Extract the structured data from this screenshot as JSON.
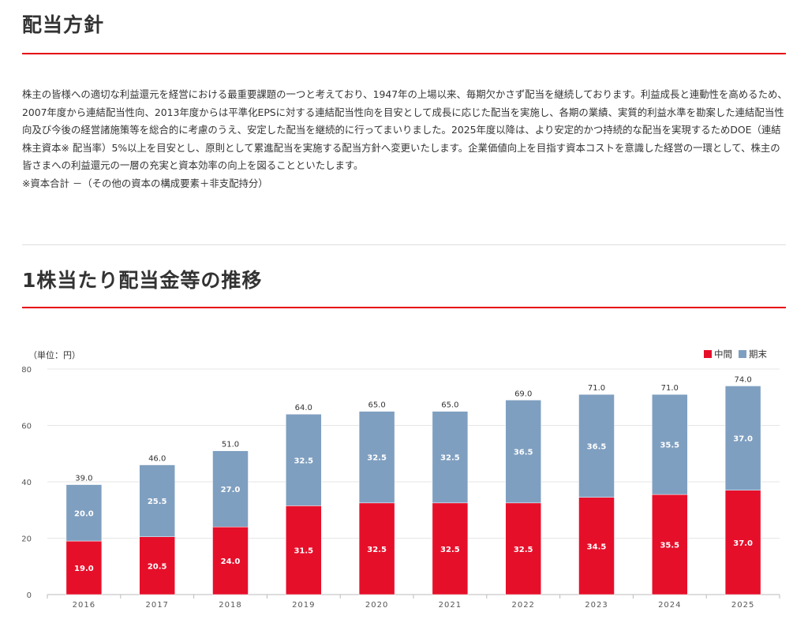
{
  "sections": {
    "policy": {
      "title": "配当方針",
      "body": [
        "株主の皆様への適切な利益還元を経営における最重要課題の一つと考えており、1947年の上場以来、毎期欠かさず配当を継続しております。利益成長と連動性を高めるため、2007年度から連結配当性向、2013年度からは平準化EPSに対する連結配当性向を目安として成長に応じた配当を実施し、各期の業績、実質的利益水準を勘案した連結配当性向及び今後の経営諸施策等を総合的に考慮のうえ、安定した配当を継続的に行ってまいりました。2025年度以降は、より安定的かつ持続的な配当を実現するためDOE（連結株主資本※ 配当率）5%以上を目安とし、原則として累進配当を実施する配当方針へ変更いたします。企業価値向上を目指す資本コストを意識した経営の一環として、株主の皆さまへの利益還元の一層の充実と資本効率の向上を図ることといたします。",
        "※資本合計 －（その他の資本の構成要素＋非支配持分）"
      ]
    },
    "trend": {
      "title": "1株当たり配当金等の推移"
    }
  },
  "chart_data": {
    "type": "bar",
    "stacked": true,
    "unit_label": "（単位：円）",
    "categories": [
      "2016",
      "2017",
      "2018",
      "2019",
      "2020",
      "2021",
      "2022",
      "2023",
      "2024",
      "2025"
    ],
    "series": [
      {
        "name": "中間",
        "color": "#e60f2a",
        "values": [
          19.0,
          20.5,
          24.0,
          31.5,
          32.5,
          32.5,
          32.5,
          34.5,
          35.5,
          37.0
        ]
      },
      {
        "name": "期末",
        "color": "#7f9fc0",
        "values": [
          20.0,
          25.5,
          27.0,
          32.5,
          32.5,
          32.5,
          36.5,
          36.5,
          35.5,
          37.0
        ]
      }
    ],
    "totals": [
      39.0,
      46.0,
      51.0,
      64.0,
      65.0,
      65.0,
      69.0,
      71.0,
      71.0,
      74.0
    ],
    "ylim": [
      0,
      80
    ],
    "yticks": [
      0,
      20,
      40,
      60,
      80
    ],
    "grid": true,
    "legend_position": "top-right",
    "value_format_decimals": 1
  }
}
